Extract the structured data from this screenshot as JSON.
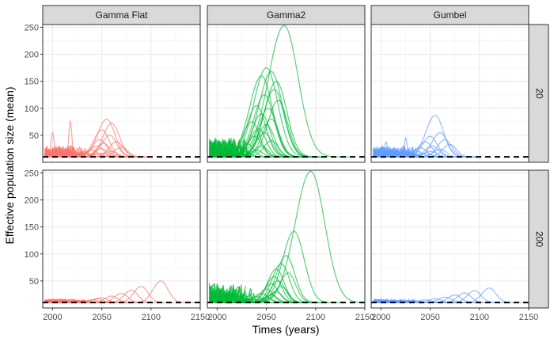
{
  "chart_data": {
    "type": "line",
    "xlabel": "Times (years)",
    "ylabel": "Effective population size (mean)",
    "xlim": [
      1990,
      2150
    ],
    "ylim": [
      0,
      255
    ],
    "x_ticks": [
      2000,
      2050,
      2100,
      2150
    ],
    "x_tick_labels": [
      "2000",
      "2050",
      "2100",
      "2150"
    ],
    "y_ticks": [
      50,
      100,
      150,
      200,
      250
    ],
    "y_tick_labels": [
      "50",
      "100",
      "150",
      "200",
      "250"
    ],
    "grid": true,
    "reference_line": {
      "y": 10,
      "style": "dashed",
      "color": "#000000"
    },
    "facet_columns": [
      "Gamma Flat",
      "Gamma2",
      "Gumbel"
    ],
    "facet_rows": [
      "20",
      "200"
    ],
    "colors": {
      "Gamma Flat": "#F8766D",
      "Gamma2": "#00BA38",
      "Gumbel": "#619CFF"
    },
    "panels": [
      {
        "column": "Gamma Flat",
        "row": "20",
        "peaks": [
          [
            2055,
            80
          ],
          [
            2060,
            72
          ],
          [
            2050,
            60
          ],
          [
            2058,
            50
          ],
          [
            2048,
            42
          ],
          [
            2065,
            38
          ],
          [
            2052,
            35
          ],
          [
            2045,
            30
          ],
          [
            2070,
            28
          ],
          [
            2050,
            25
          ],
          [
            2040,
            22
          ],
          [
            2060,
            20
          ],
          [
            2032,
            18
          ],
          [
            2050,
            17
          ],
          [
            2045,
            15
          ]
        ],
        "spikes": [
          [
            2018,
            76
          ],
          [
            2000,
            55
          ]
        ]
      },
      {
        "column": "Gamma2",
        "row": "20",
        "peaks": [
          [
            2068,
            253
          ],
          [
            2050,
            175
          ],
          [
            2055,
            168
          ],
          [
            2045,
            160
          ],
          [
            2060,
            150
          ],
          [
            2058,
            135
          ],
          [
            2048,
            125
          ],
          [
            2062,
            115
          ],
          [
            2040,
            105
          ],
          [
            2052,
            100
          ],
          [
            2045,
            90
          ],
          [
            2055,
            80
          ],
          [
            2035,
            75
          ],
          [
            2050,
            70
          ],
          [
            2042,
            62
          ],
          [
            2048,
            55
          ],
          [
            2038,
            48
          ],
          [
            2055,
            40
          ],
          [
            2030,
            35
          ],
          [
            2045,
            30
          ],
          [
            2025,
            25
          ],
          [
            2040,
            22
          ]
        ],
        "spikes": []
      },
      {
        "column": "Gumbel",
        "row": "20",
        "peaks": [
          [
            2055,
            87
          ],
          [
            2060,
            55
          ],
          [
            2050,
            48
          ],
          [
            2065,
            42
          ],
          [
            2045,
            38
          ],
          [
            2070,
            33
          ],
          [
            2052,
            30
          ],
          [
            2040,
            27
          ],
          [
            2060,
            24
          ],
          [
            2035,
            22
          ],
          [
            2050,
            20
          ],
          [
            2030,
            18
          ],
          [
            2045,
            16
          ]
        ],
        "spikes": [
          [
            2025,
            45
          ],
          [
            2005,
            38
          ]
        ]
      },
      {
        "column": "Gamma Flat",
        "row": "200",
        "peaks": [
          [
            2110,
            50
          ],
          [
            2090,
            40
          ],
          [
            2080,
            33
          ],
          [
            2070,
            27
          ],
          [
            2060,
            22
          ],
          [
            2050,
            19
          ],
          [
            2045,
            17
          ],
          [
            2040,
            15
          ],
          [
            2030,
            13
          ]
        ],
        "spikes": []
      },
      {
        "column": "Gamma2",
        "row": "200",
        "peaks": [
          [
            2095,
            253
          ],
          [
            2078,
            142
          ],
          [
            2070,
            97
          ],
          [
            2065,
            82
          ],
          [
            2060,
            72
          ],
          [
            2072,
            65
          ],
          [
            2058,
            58
          ],
          [
            2062,
            50
          ],
          [
            2055,
            45
          ],
          [
            2065,
            40
          ],
          [
            2050,
            35
          ],
          [
            2060,
            30
          ],
          [
            2045,
            27
          ],
          [
            2055,
            24
          ],
          [
            2040,
            21
          ],
          [
            2050,
            19
          ],
          [
            2035,
            17
          ]
        ],
        "spikes": []
      },
      {
        "column": "Gumbel",
        "row": "200",
        "peaks": [
          [
            2110,
            37
          ],
          [
            2095,
            32
          ],
          [
            2085,
            28
          ],
          [
            2075,
            24
          ],
          [
            2065,
            20
          ],
          [
            2055,
            17
          ],
          [
            2045,
            15
          ],
          [
            2035,
            13
          ]
        ],
        "spikes": []
      }
    ]
  }
}
